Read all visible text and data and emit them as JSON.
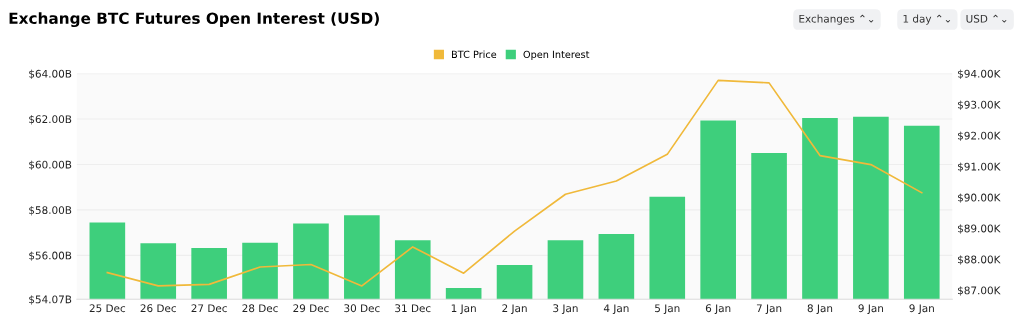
{
  "chart_data": {
    "type": "bar",
    "title": "Exchange BTC Futures Open Interest (USD)",
    "annotations": [
      "Exchanges ⌃⌄",
      "1 day ⌃⌄",
      "USD ⌃⌄"
    ],
    "categories": [
      "25 Dec",
      "26 Dec",
      "27 Dec",
      "28 Dec",
      "29 Dec",
      "30 Dec",
      "31 Dec",
      "1 Jan",
      "2 Jan",
      "3 Jan",
      "4 Jan",
      "5 Jan",
      "6 Jan",
      "7 Jan",
      "8 Jan",
      "9 Jan",
      "9 Jan"
    ],
    "series": [
      {
        "name": "BTC Price",
        "type": "line",
        "axis": "y2",
        "color": "#f0b93a",
        "values": [
          87.57,
          87.14,
          87.19,
          87.75,
          87.83,
          87.14,
          88.4,
          87.55,
          88.91,
          90.1,
          90.53,
          91.39,
          93.78,
          93.7,
          91.35,
          91.06,
          90.15
        ]
      },
      {
        "name": "Open Interest",
        "color": "#3ecf7c",
        "values": [
          57.45,
          56.53,
          56.32,
          56.56,
          57.4,
          57.76,
          56.66,
          54.56,
          55.57,
          56.67,
          56.94,
          58.58,
          61.94,
          60.5,
          62.04,
          62.1,
          61.7
        ]
      }
    ],
    "ylim": [
      54.07,
      64.0
    ],
    "yticks": [
      {
        "value": 54.07,
        "label": "$54.07B"
      },
      {
        "value": 56,
        "label": "$56.00B"
      },
      {
        "value": 58,
        "label": "$58.00B"
      },
      {
        "value": 60,
        "label": "$60.00B"
      },
      {
        "value": 62,
        "label": "$62.00B"
      },
      {
        "value": 64,
        "label": "$64.00B"
      }
    ],
    "y2lim": [
      86.71,
      94.0
    ],
    "y2ticks": [
      {
        "value": 87,
        "label": "$87.00K"
      },
      {
        "value": 88,
        "label": "$88.00K"
      },
      {
        "value": 89,
        "label": "$89.00K"
      },
      {
        "value": 90,
        "label": "$90.00K"
      },
      {
        "value": 91,
        "label": "$91.00K"
      },
      {
        "value": 92,
        "label": "$92.00K"
      },
      {
        "value": 93,
        "label": "$93.00K"
      },
      {
        "value": 94,
        "label": "$94.00K"
      }
    ],
    "grid": "y",
    "legend": "top"
  }
}
